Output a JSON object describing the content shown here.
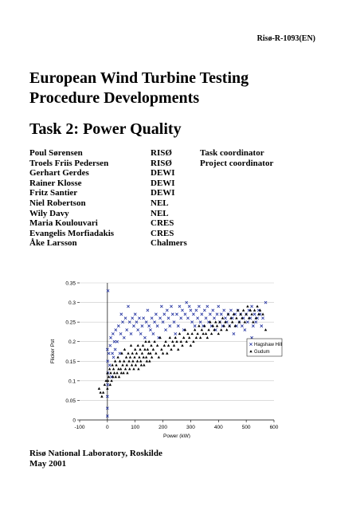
{
  "report_number": "Risø-R-1093(EN)",
  "title": {
    "line1": "European Wind Turbine Testing",
    "line2": "Procedure Developments"
  },
  "task_title": "Task 2: Power Quality",
  "authors": [
    {
      "name": "Poul Sørensen",
      "org": "RISØ",
      "role": "Task coordinator"
    },
    {
      "name": "Troels Friis Pedersen",
      "org": "RISØ",
      "role": "Project coordinator"
    },
    {
      "name": "Gerhart Gerdes",
      "org": "DEWI",
      "role": ""
    },
    {
      "name": "Rainer Klosse",
      "org": "DEWI",
      "role": ""
    },
    {
      "name": "Fritz Santier",
      "org": "DEWI",
      "role": ""
    },
    {
      "name": "Niel Robertson",
      "org": "NEL",
      "role": ""
    },
    {
      "name": "Wily Davy",
      "org": "NEL",
      "role": ""
    },
    {
      "name": "Maria Koulouvari",
      "org": "CRES",
      "role": ""
    },
    {
      "name": "Evangelis Morfiadakis",
      "org": "CRES",
      "role": ""
    },
    {
      "name": "Åke Larsson",
      "org": "Chalmers",
      "role": ""
    }
  ],
  "chart_data": {
    "type": "scatter",
    "xlabel": "Power (kW)",
    "ylabel": "Flicker Pst",
    "xlim": [
      -100,
      600
    ],
    "ylim": [
      0,
      0.35
    ],
    "xticks": [
      "-100",
      "0",
      "100",
      "200",
      "300",
      "400",
      "500",
      "600"
    ],
    "yticks": [
      "0",
      "0.05",
      "0.1",
      "0.15",
      "0.2",
      "0.25",
      "0.3",
      "0.35"
    ],
    "grid": true,
    "legend_position": "right",
    "series": [
      {
        "name": "Hagshaw Hill",
        "marker": "x",
        "color": "#1f2f9f",
        "points": [
          [
            0,
            0.01
          ],
          [
            0,
            0.03
          ],
          [
            0,
            0.06
          ],
          [
            1,
            0.09
          ],
          [
            2,
            0.12
          ],
          [
            1,
            0.15
          ],
          [
            0,
            0.18
          ],
          [
            2,
            0.33
          ],
          [
            5,
            0.17
          ],
          [
            8,
            0.14
          ],
          [
            10,
            0.19
          ],
          [
            12,
            0.21
          ],
          [
            15,
            0.11
          ],
          [
            18,
            0.17
          ],
          [
            20,
            0.22
          ],
          [
            22,
            0.16
          ],
          [
            25,
            0.2
          ],
          [
            28,
            0.18
          ],
          [
            30,
            0.23
          ],
          [
            35,
            0.2
          ],
          [
            40,
            0.24
          ],
          [
            45,
            0.17
          ],
          [
            48,
            0.22
          ],
          [
            50,
            0.27
          ],
          [
            55,
            0.25
          ],
          [
            60,
            0.21
          ],
          [
            65,
            0.26
          ],
          [
            70,
            0.23
          ],
          [
            75,
            0.29
          ],
          [
            80,
            0.25
          ],
          [
            85,
            0.22
          ],
          [
            90,
            0.26
          ],
          [
            95,
            0.24
          ],
          [
            100,
            0.27
          ],
          [
            105,
            0.25
          ],
          [
            110,
            0.23
          ],
          [
            115,
            0.26
          ],
          [
            120,
            0.22
          ],
          [
            125,
            0.24
          ],
          [
            130,
            0.26
          ],
          [
            135,
            0.21
          ],
          [
            140,
            0.25
          ],
          [
            145,
            0.28
          ],
          [
            150,
            0.24
          ],
          [
            155,
            0.23
          ],
          [
            160,
            0.26
          ],
          [
            165,
            0.22
          ],
          [
            170,
            0.25
          ],
          [
            175,
            0.27
          ],
          [
            180,
            0.24
          ],
          [
            185,
            0.21
          ],
          [
            190,
            0.26
          ],
          [
            195,
            0.29
          ],
          [
            200,
            0.25
          ],
          [
            205,
            0.27
          ],
          [
            210,
            0.23
          ],
          [
            215,
            0.28
          ],
          [
            220,
            0.26
          ],
          [
            225,
            0.24
          ],
          [
            230,
            0.29
          ],
          [
            235,
            0.27
          ],
          [
            240,
            0.25
          ],
          [
            245,
            0.22
          ],
          [
            250,
            0.27
          ],
          [
            255,
            0.24
          ],
          [
            260,
            0.29
          ],
          [
            265,
            0.26
          ],
          [
            270,
            0.28
          ],
          [
            275,
            0.23
          ],
          [
            280,
            0.27
          ],
          [
            285,
            0.3
          ],
          [
            290,
            0.26
          ],
          [
            295,
            0.29
          ],
          [
            300,
            0.28
          ],
          [
            305,
            0.25
          ],
          [
            310,
            0.27
          ],
          [
            315,
            0.24
          ],
          [
            320,
            0.28
          ],
          [
            325,
            0.26
          ],
          [
            330,
            0.29
          ],
          [
            335,
            0.25
          ],
          [
            340,
            0.27
          ],
          [
            345,
            0.24
          ],
          [
            350,
            0.28
          ],
          [
            355,
            0.26
          ],
          [
            360,
            0.29
          ],
          [
            365,
            0.25
          ],
          [
            370,
            0.27
          ],
          [
            375,
            0.24
          ],
          [
            380,
            0.28
          ],
          [
            385,
            0.26
          ],
          [
            390,
            0.23
          ],
          [
            395,
            0.27
          ],
          [
            400,
            0.29
          ],
          [
            405,
            0.25
          ],
          [
            410,
            0.27
          ],
          [
            415,
            0.24
          ],
          [
            420,
            0.28
          ],
          [
            425,
            0.26
          ],
          [
            430,
            0.25
          ],
          [
            435,
            0.27
          ],
          [
            440,
            0.24
          ],
          [
            445,
            0.28
          ],
          [
            450,
            0.26
          ],
          [
            455,
            0.22
          ],
          [
            460,
            0.27
          ],
          [
            465,
            0.24
          ],
          [
            470,
            0.28
          ],
          [
            475,
            0.25
          ],
          [
            480,
            0.27
          ],
          [
            485,
            0.24
          ],
          [
            490,
            0.26
          ],
          [
            495,
            0.23
          ],
          [
            500,
            0.27
          ],
          [
            505,
            0.25
          ],
          [
            510,
            0.28
          ],
          [
            515,
            0.26
          ],
          [
            520,
            0.29
          ],
          [
            525,
            0.24
          ],
          [
            530,
            0.27
          ],
          [
            535,
            0.25
          ],
          [
            540,
            0.26
          ],
          [
            545,
            0.28
          ],
          [
            550,
            0.27
          ],
          [
            555,
            0.24
          ],
          [
            560,
            0.26
          ],
          [
            570,
            0.3
          ],
          [
            520,
            0.21
          ]
        ]
      },
      {
        "name": "Gudum",
        "marker": "triangle",
        "color": "#000000",
        "points": [
          [
            -30,
            0.08
          ],
          [
            -25,
            0.07
          ],
          [
            -20,
            0.06
          ],
          [
            -15,
            0.07
          ],
          [
            -10,
            0.09
          ],
          [
            -5,
            0.1
          ],
          [
            0,
            0.08
          ],
          [
            0,
            0.12
          ],
          [
            2,
            0.1
          ],
          [
            5,
            0.11
          ],
          [
            8,
            0.13
          ],
          [
            10,
            0.09
          ],
          [
            12,
            0.12
          ],
          [
            15,
            0.1
          ],
          [
            18,
            0.14
          ],
          [
            20,
            0.11
          ],
          [
            22,
            0.13
          ],
          [
            25,
            0.12
          ],
          [
            28,
            0.15
          ],
          [
            30,
            0.11
          ],
          [
            32,
            0.14
          ],
          [
            35,
            0.12
          ],
          [
            38,
            0.16
          ],
          [
            40,
            0.13
          ],
          [
            42,
            0.11
          ],
          [
            45,
            0.15
          ],
          [
            48,
            0.13
          ],
          [
            50,
            0.12
          ],
          [
            52,
            0.17
          ],
          [
            55,
            0.14
          ],
          [
            58,
            0.12
          ],
          [
            60,
            0.15
          ],
          [
            62,
            0.18
          ],
          [
            65,
            0.13
          ],
          [
            68,
            0.16
          ],
          [
            70,
            0.14
          ],
          [
            72,
            0.12
          ],
          [
            75,
            0.17
          ],
          [
            78,
            0.15
          ],
          [
            80,
            0.13
          ],
          [
            82,
            0.16
          ],
          [
            85,
            0.19
          ],
          [
            88,
            0.14
          ],
          [
            90,
            0.17
          ],
          [
            92,
            0.15
          ],
          [
            95,
            0.13
          ],
          [
            98,
            0.16
          ],
          [
            100,
            0.18
          ],
          [
            102,
            0.14
          ],
          [
            105,
            0.17
          ],
          [
            108,
            0.15
          ],
          [
            110,
            0.19
          ],
          [
            112,
            0.13
          ],
          [
            115,
            0.16
          ],
          [
            118,
            0.18
          ],
          [
            120,
            0.15
          ],
          [
            122,
            0.14
          ],
          [
            125,
            0.17
          ],
          [
            128,
            0.19
          ],
          [
            130,
            0.16
          ],
          [
            132,
            0.14
          ],
          [
            135,
            0.18
          ],
          [
            138,
            0.2
          ],
          [
            140,
            0.16
          ],
          [
            142,
            0.15
          ],
          [
            145,
            0.18
          ],
          [
            148,
            0.17
          ],
          [
            150,
            0.2
          ],
          [
            152,
            0.15
          ],
          [
            155,
            0.17
          ],
          [
            158,
            0.19
          ],
          [
            160,
            0.16
          ],
          [
            165,
            0.18
          ],
          [
            170,
            0.2
          ],
          [
            175,
            0.17
          ],
          [
            180,
            0.19
          ],
          [
            185,
            0.16
          ],
          [
            190,
            0.21
          ],
          [
            195,
            0.18
          ],
          [
            200,
            0.17
          ],
          [
            205,
            0.19
          ],
          [
            210,
            0.2
          ],
          [
            215,
            0.17
          ],
          [
            220,
            0.19
          ],
          [
            225,
            0.21
          ],
          [
            230,
            0.18
          ],
          [
            235,
            0.2
          ],
          [
            240,
            0.19
          ],
          [
            245,
            0.21
          ],
          [
            250,
            0.2
          ],
          [
            255,
            0.18
          ],
          [
            260,
            0.22
          ],
          [
            265,
            0.2
          ],
          [
            270,
            0.19
          ],
          [
            275,
            0.21
          ],
          [
            280,
            0.23
          ],
          [
            285,
            0.2
          ],
          [
            290,
            0.22
          ],
          [
            295,
            0.21
          ],
          [
            300,
            0.19
          ],
          [
            305,
            0.22
          ],
          [
            310,
            0.2
          ],
          [
            315,
            0.23
          ],
          [
            320,
            0.21
          ],
          [
            325,
            0.22
          ],
          [
            330,
            0.24
          ],
          [
            335,
            0.21
          ],
          [
            340,
            0.23
          ],
          [
            345,
            0.22
          ],
          [
            350,
            0.24
          ],
          [
            355,
            0.22
          ],
          [
            360,
            0.21
          ],
          [
            365,
            0.23
          ],
          [
            370,
            0.25
          ],
          [
            375,
            0.22
          ],
          [
            380,
            0.24
          ],
          [
            385,
            0.23
          ],
          [
            390,
            0.25
          ],
          [
            395,
            0.24
          ],
          [
            400,
            0.22
          ],
          [
            405,
            0.25
          ],
          [
            410,
            0.23
          ],
          [
            415,
            0.26
          ],
          [
            420,
            0.24
          ],
          [
            425,
            0.25
          ],
          [
            430,
            0.23
          ],
          [
            435,
            0.27
          ],
          [
            440,
            0.24
          ],
          [
            445,
            0.26
          ],
          [
            450,
            0.25
          ],
          [
            455,
            0.27
          ],
          [
            460,
            0.24
          ],
          [
            465,
            0.26
          ],
          [
            470,
            0.28
          ],
          [
            475,
            0.25
          ],
          [
            480,
            0.27
          ],
          [
            485,
            0.26
          ],
          [
            490,
            0.28
          ],
          [
            495,
            0.25
          ],
          [
            500,
            0.27
          ],
          [
            505,
            0.29
          ],
          [
            510,
            0.26
          ],
          [
            515,
            0.28
          ],
          [
            520,
            0.27
          ],
          [
            525,
            0.25
          ],
          [
            530,
            0.28
          ],
          [
            535,
            0.26
          ],
          [
            540,
            0.29
          ],
          [
            545,
            0.27
          ],
          [
            550,
            0.28
          ],
          [
            560,
            0.27
          ],
          [
            570,
            0.23
          ]
        ]
      }
    ]
  },
  "footer": {
    "line1": "Risø National Laboratory, Roskilde",
    "line2": "May 2001"
  }
}
